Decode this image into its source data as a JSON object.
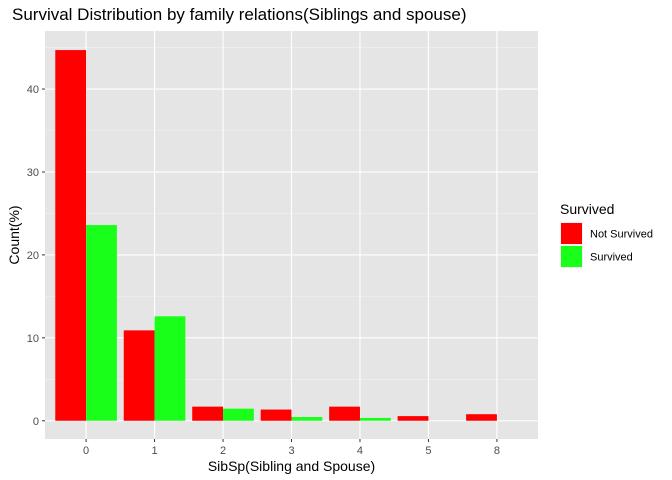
{
  "chart_data": {
    "type": "bar",
    "title": "Survival Distribution by family relations(Siblings and spouse)",
    "xlabel": "SibSp(Sibling and Spouse)",
    "ylabel": "Count(%)",
    "categories": [
      "0",
      "1",
      "2",
      "3",
      "4",
      "5",
      "8"
    ],
    "series": [
      {
        "name": "Not Survived",
        "color": "#ff0000",
        "values": [
          44.7,
          10.9,
          1.7,
          1.35,
          1.7,
          0.56,
          0.79
        ]
      },
      {
        "name": "Survived",
        "color": "#1aff1a",
        "values": [
          23.6,
          12.6,
          1.46,
          0.45,
          0.34,
          null,
          null
        ]
      }
    ],
    "ylim": [
      -2.2,
      47
    ],
    "yticks": [
      0,
      10,
      20,
      30,
      40
    ],
    "ytick_labels": [
      "0",
      "10",
      "20",
      "30",
      "40"
    ],
    "grid": true,
    "legend": {
      "title": "Survived",
      "position": "right"
    }
  }
}
